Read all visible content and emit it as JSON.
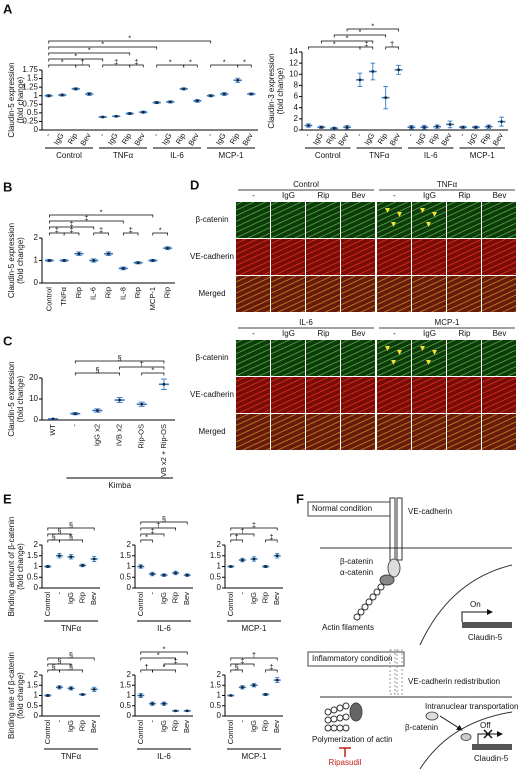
{
  "panel_labels": [
    "A",
    "B",
    "C",
    "D",
    "E",
    "F"
  ],
  "chart_data": [
    {
      "type": "dot",
      "ylabel": [
        "Claudin-5 expression",
        "(fold change)"
      ],
      "categories": [
        "-",
        "IgG",
        "Rip",
        "Bev",
        "-",
        "IgG",
        "Rip",
        "Bev",
        "-",
        "IgG",
        "Rip",
        "Bev",
        "-",
        "IgG",
        "Rip",
        "Bev"
      ],
      "groups": [
        "Control",
        "TNFα",
        "IL-6",
        "MCP-1"
      ],
      "values": [
        1.0,
        1.02,
        1.2,
        1.05,
        0.38,
        0.4,
        0.48,
        0.52,
        0.8,
        0.82,
        1.2,
        0.85,
        1.0,
        1.05,
        1.45,
        1.05
      ],
      "errors": [
        0.03,
        0.03,
        0.03,
        0.04,
        0.02,
        0.02,
        0.03,
        0.03,
        0.03,
        0.03,
        0.03,
        0.04,
        0.03,
        0.04,
        0.06,
        0.03
      ],
      "ylim": [
        0,
        1.75
      ],
      "yticks": [
        0,
        0.25,
        0.5,
        0.75,
        1,
        1.25,
        1.5,
        1.75
      ],
      "comparisons": [
        {
          "label": "*",
          "groups": [
            0,
            2
          ]
        },
        {
          "label": "†",
          "groups": [
            2,
            3
          ]
        },
        {
          "label": "‡",
          "groups": [
            4,
            6
          ]
        },
        {
          "label": "‡",
          "groups": [
            6,
            7
          ]
        },
        {
          "label": "*",
          "groups": [
            8,
            10
          ]
        },
        {
          "label": "*",
          "groups": [
            10,
            11
          ]
        },
        {
          "label": "*",
          "groups": [
            12,
            14
          ]
        },
        {
          "label": "*",
          "groups": [
            14,
            15
          ]
        },
        {
          "label": "*",
          "groups": [
            0,
            4
          ]
        },
        {
          "label": "*",
          "groups": [
            0,
            6
          ]
        },
        {
          "label": "*",
          "groups": [
            0,
            8
          ]
        },
        {
          "label": "*",
          "groups": [
            0,
            12
          ]
        }
      ]
    },
    {
      "type": "dot",
      "ylabel": [
        "Claudin-3 expression",
        "(fold change)"
      ],
      "categories": [
        "-",
        "IgG",
        "Rip",
        "Bev",
        "-",
        "IgG",
        "Rip",
        "Bev",
        "-",
        "IgG",
        "Rip",
        "Bev",
        "-",
        "IgG",
        "Rip",
        "Bev"
      ],
      "groups": [
        "Control",
        "TNFα",
        "IL-6",
        "MCP-1"
      ],
      "values": [
        0.8,
        0.5,
        0.3,
        0.5,
        9,
        10.5,
        5.8,
        10.8,
        0.5,
        0.5,
        0.6,
        1,
        0.5,
        0.5,
        0.6,
        1.5
      ],
      "errors": [
        0.3,
        0.2,
        0.2,
        0.3,
        1.2,
        1.5,
        2,
        0.8,
        0.3,
        0.3,
        0.3,
        0.6,
        0.2,
        0.2,
        0.3,
        0.8
      ],
      "ylim": [
        0,
        14
      ],
      "yticks": [
        0,
        2,
        4,
        6,
        8,
        10,
        12,
        14
      ],
      "comparisons": [
        {
          "label": "‡",
          "groups": [
            4,
            5
          ]
        },
        {
          "label": "†",
          "groups": [
            6,
            7
          ]
        },
        {
          "label": "*",
          "groups": [
            0,
            4
          ]
        },
        {
          "label": "*",
          "groups": [
            1,
            5
          ]
        },
        {
          "label": "*",
          "groups": [
            2,
            6
          ]
        },
        {
          "label": "*",
          "groups": [
            3,
            7
          ]
        }
      ]
    },
    {
      "type": "dot",
      "ylabel": [
        "Claudin-5 expression",
        "(fold change)"
      ],
      "categories": [
        "Control",
        "TNFα",
        "Rip",
        "IL-6",
        "Rip",
        "IL-8",
        "Rip",
        "MCP-1",
        "Rip"
      ],
      "values": [
        1.0,
        1.0,
        1.3,
        1.0,
        1.3,
        0.65,
        0.9,
        1.0,
        1.55
      ],
      "errors": [
        0.05,
        0.05,
        0.08,
        0.07,
        0.08,
        0.06,
        0.05,
        0.05,
        0.06
      ],
      "ylim": [
        0,
        2
      ],
      "yticks": [
        0,
        1,
        2
      ],
      "comparisons": [
        {
          "label": "‡",
          "groups": [
            1,
            2
          ]
        },
        {
          "label": "‡",
          "groups": [
            3,
            4
          ]
        },
        {
          "label": "‡",
          "groups": [
            5,
            6
          ]
        },
        {
          "label": "*",
          "groups": [
            7,
            8
          ]
        },
        {
          "label": "‡",
          "groups": [
            0,
            1
          ]
        },
        {
          "label": "‡",
          "groups": [
            0,
            3
          ]
        },
        {
          "label": "‡",
          "groups": [
            0,
            5
          ]
        },
        {
          "label": "*",
          "groups": [
            0,
            7
          ]
        }
      ]
    },
    {
      "type": "dot",
      "ylabel": [
        "Claudin-5 expression",
        "(fold change)"
      ],
      "categories": [
        "WT",
        "-",
        "IgG x2",
        "IVB x2",
        "Rip-OS",
        "IVB x2 + Rip-OS"
      ],
      "group_label": "Kimba",
      "values": [
        0.5,
        3,
        4.5,
        9.5,
        7.5,
        17
      ],
      "errors": [
        0.2,
        0.5,
        0.8,
        1.2,
        1,
        2.5
      ],
      "ylim": [
        0,
        20
      ],
      "yticks": [
        0,
        10,
        20
      ],
      "comparisons": [
        {
          "label": "§",
          "groups": [
            1,
            3
          ]
        },
        {
          "label": "*",
          "groups": [
            4,
            5
          ]
        },
        {
          "label": "†",
          "groups": [
            3,
            5
          ]
        },
        {
          "label": "§",
          "groups": [
            1,
            5
          ]
        }
      ]
    },
    {
      "type": "dot",
      "ylabel": [
        "Binding amount of β-catenin",
        "(fold change)"
      ],
      "categories": [
        "Control",
        "-",
        "IgG",
        "Rip",
        "Bev"
      ],
      "group": "TNFα",
      "values": [
        1,
        1.5,
        1.45,
        1.05,
        1.35
      ],
      "errors": [
        0.05,
        0.1,
        0.1,
        0.06,
        0.12
      ],
      "ylim": [
        0,
        2
      ],
      "yticks": [
        0,
        0.5,
        1,
        1.5,
        2
      ],
      "comparisons": [
        {
          "label": "§",
          "groups": [
            1,
            3
          ]
        },
        {
          "label": "§",
          "groups": [
            0,
            1
          ]
        },
        {
          "label": "§",
          "groups": [
            0,
            2
          ]
        },
        {
          "label": "§",
          "groups": [
            0,
            4
          ]
        }
      ]
    },
    {
      "type": "dot",
      "categories": [
        "Control",
        "-",
        "IgG",
        "Rip",
        "Bev"
      ],
      "group": "IL-6",
      "values": [
        1.0,
        0.65,
        0.6,
        0.7,
        0.6
      ],
      "errors": [
        0.08,
        0.08,
        0.06,
        0.08,
        0.06
      ],
      "ylim": [
        0,
        2
      ],
      "yticks": [
        0,
        0.5,
        1,
        1.5,
        2
      ],
      "comparisons": [
        {
          "label": "*",
          "groups": [
            0,
            1
          ]
        },
        {
          "label": "‡",
          "groups": [
            0,
            2
          ]
        },
        {
          "label": "†",
          "groups": [
            0,
            3
          ]
        },
        {
          "label": "§",
          "groups": [
            0,
            4
          ]
        }
      ]
    },
    {
      "type": "dot",
      "categories": [
        "Control",
        "-",
        "IgG",
        "Rip",
        "Bev"
      ],
      "group": "MCP-1",
      "values": [
        1.0,
        1.3,
        1.35,
        1.0,
        1.5
      ],
      "errors": [
        0.04,
        0.08,
        0.1,
        0.05,
        0.1
      ],
      "ylim": [
        0,
        2
      ],
      "yticks": [
        0,
        0.5,
        1,
        1.5,
        2
      ],
      "comparisons": [
        {
          "label": "†",
          "groups": [
            0,
            1
          ]
        },
        {
          "label": "‡",
          "groups": [
            3,
            4
          ]
        },
        {
          "label": "†",
          "groups": [
            0,
            2
          ]
        },
        {
          "label": "‡",
          "groups": [
            0,
            4
          ]
        }
      ]
    },
    {
      "type": "dot",
      "ylabel": [
        "Binding rate of β-catenin",
        "(fold change)"
      ],
      "categories": [
        "Control",
        "-",
        "IgG",
        "Rip",
        "Bev"
      ],
      "group": "TNFα",
      "values": [
        1,
        1.4,
        1.35,
        1.05,
        1.3
      ],
      "errors": [
        0.05,
        0.08,
        0.08,
        0.04,
        0.1
      ],
      "ylim": [
        0,
        2
      ],
      "yticks": [
        0,
        0.5,
        1,
        1.5,
        2
      ],
      "comparisons": [
        {
          "label": "§",
          "groups": [
            0,
            1
          ]
        },
        {
          "label": "§",
          "groups": [
            1,
            3
          ]
        },
        {
          "label": "§",
          "groups": [
            0,
            2
          ]
        },
        {
          "label": "§",
          "groups": [
            0,
            4
          ]
        }
      ]
    },
    {
      "type": "dot",
      "categories": [
        "Control",
        "-",
        "IgG",
        "Rip",
        "Bev"
      ],
      "group": "IL-6",
      "values": [
        1,
        0.6,
        0.6,
        0.25,
        0.25
      ],
      "errors": [
        0.1,
        0.08,
        0.08,
        0.03,
        0.03
      ],
      "ylim": [
        0,
        2
      ],
      "yticks": [
        0,
        0.5,
        1,
        1.5,
        2
      ],
      "comparisons": [
        {
          "label": "†",
          "groups": [
            0,
            1
          ]
        },
        {
          "label": "*",
          "groups": [
            1,
            3
          ]
        },
        {
          "label": "‡",
          "groups": [
            2,
            4
          ]
        },
        {
          "label": "*",
          "groups": [
            0,
            3
          ]
        },
        {
          "label": "*",
          "groups": [
            0,
            4
          ]
        }
      ]
    },
    {
      "type": "dot",
      "categories": [
        "Control",
        "-",
        "IgG",
        "Rip",
        "Bev"
      ],
      "group": "MCP-1",
      "values": [
        1,
        1.4,
        1.5,
        1.05,
        1.75
      ],
      "errors": [
        0.03,
        0.08,
        0.08,
        0.05,
        0.12
      ],
      "ylim": [
        0,
        2
      ],
      "yticks": [
        0,
        0.5,
        1,
        1.5,
        2
      ],
      "comparisons": [
        {
          "label": "§",
          "groups": [
            0,
            1
          ]
        },
        {
          "label": "‡",
          "groups": [
            0,
            2
          ]
        },
        {
          "label": "‡",
          "groups": [
            3,
            4
          ]
        },
        {
          "label": "†",
          "groups": [
            0,
            4
          ]
        }
      ]
    }
  ],
  "microscopy": [
    {
      "rows": [
        "β-catenin",
        "VE-cadherin",
        "Merged"
      ],
      "conditions": [
        {
          "name": "Control",
          "columns": [
            "-",
            "IgG",
            "Rip",
            "Bev"
          ]
        },
        {
          "name": "TNFα",
          "columns": [
            "-",
            "IgG",
            "Rip",
            "Bev"
          ]
        }
      ]
    },
    {
      "rows": [
        "β-catenin",
        "VE-cadherin",
        "Merged"
      ],
      "conditions": [
        {
          "name": "IL-6",
          "columns": [
            "-",
            "IgG",
            "Rip",
            "Bev"
          ]
        },
        {
          "name": "MCP-1",
          "columns": [
            "-",
            "IgG",
            "Rip",
            "Bev"
          ]
        }
      ]
    }
  ],
  "diagram": {
    "normal_title": "Normal condition",
    "ve_cadherin": "VE-cadherin",
    "beta_catenin": "β-catenin",
    "alpha_catenin": "α-catenin",
    "actin": "Actin filaments",
    "on": "On",
    "claudin5": "Claudin-5",
    "inflammatory_title": "Inflammatory condition",
    "redistribution": "VE-cadherin redistribution",
    "transport": "Intranuclear transportation",
    "beta_catenin_2": "β-catenin",
    "off": "Off",
    "claudin5_2": "Claudin-5",
    "polymerization": "Polymerization of actin",
    "ripasudil": "Ripasudil"
  }
}
